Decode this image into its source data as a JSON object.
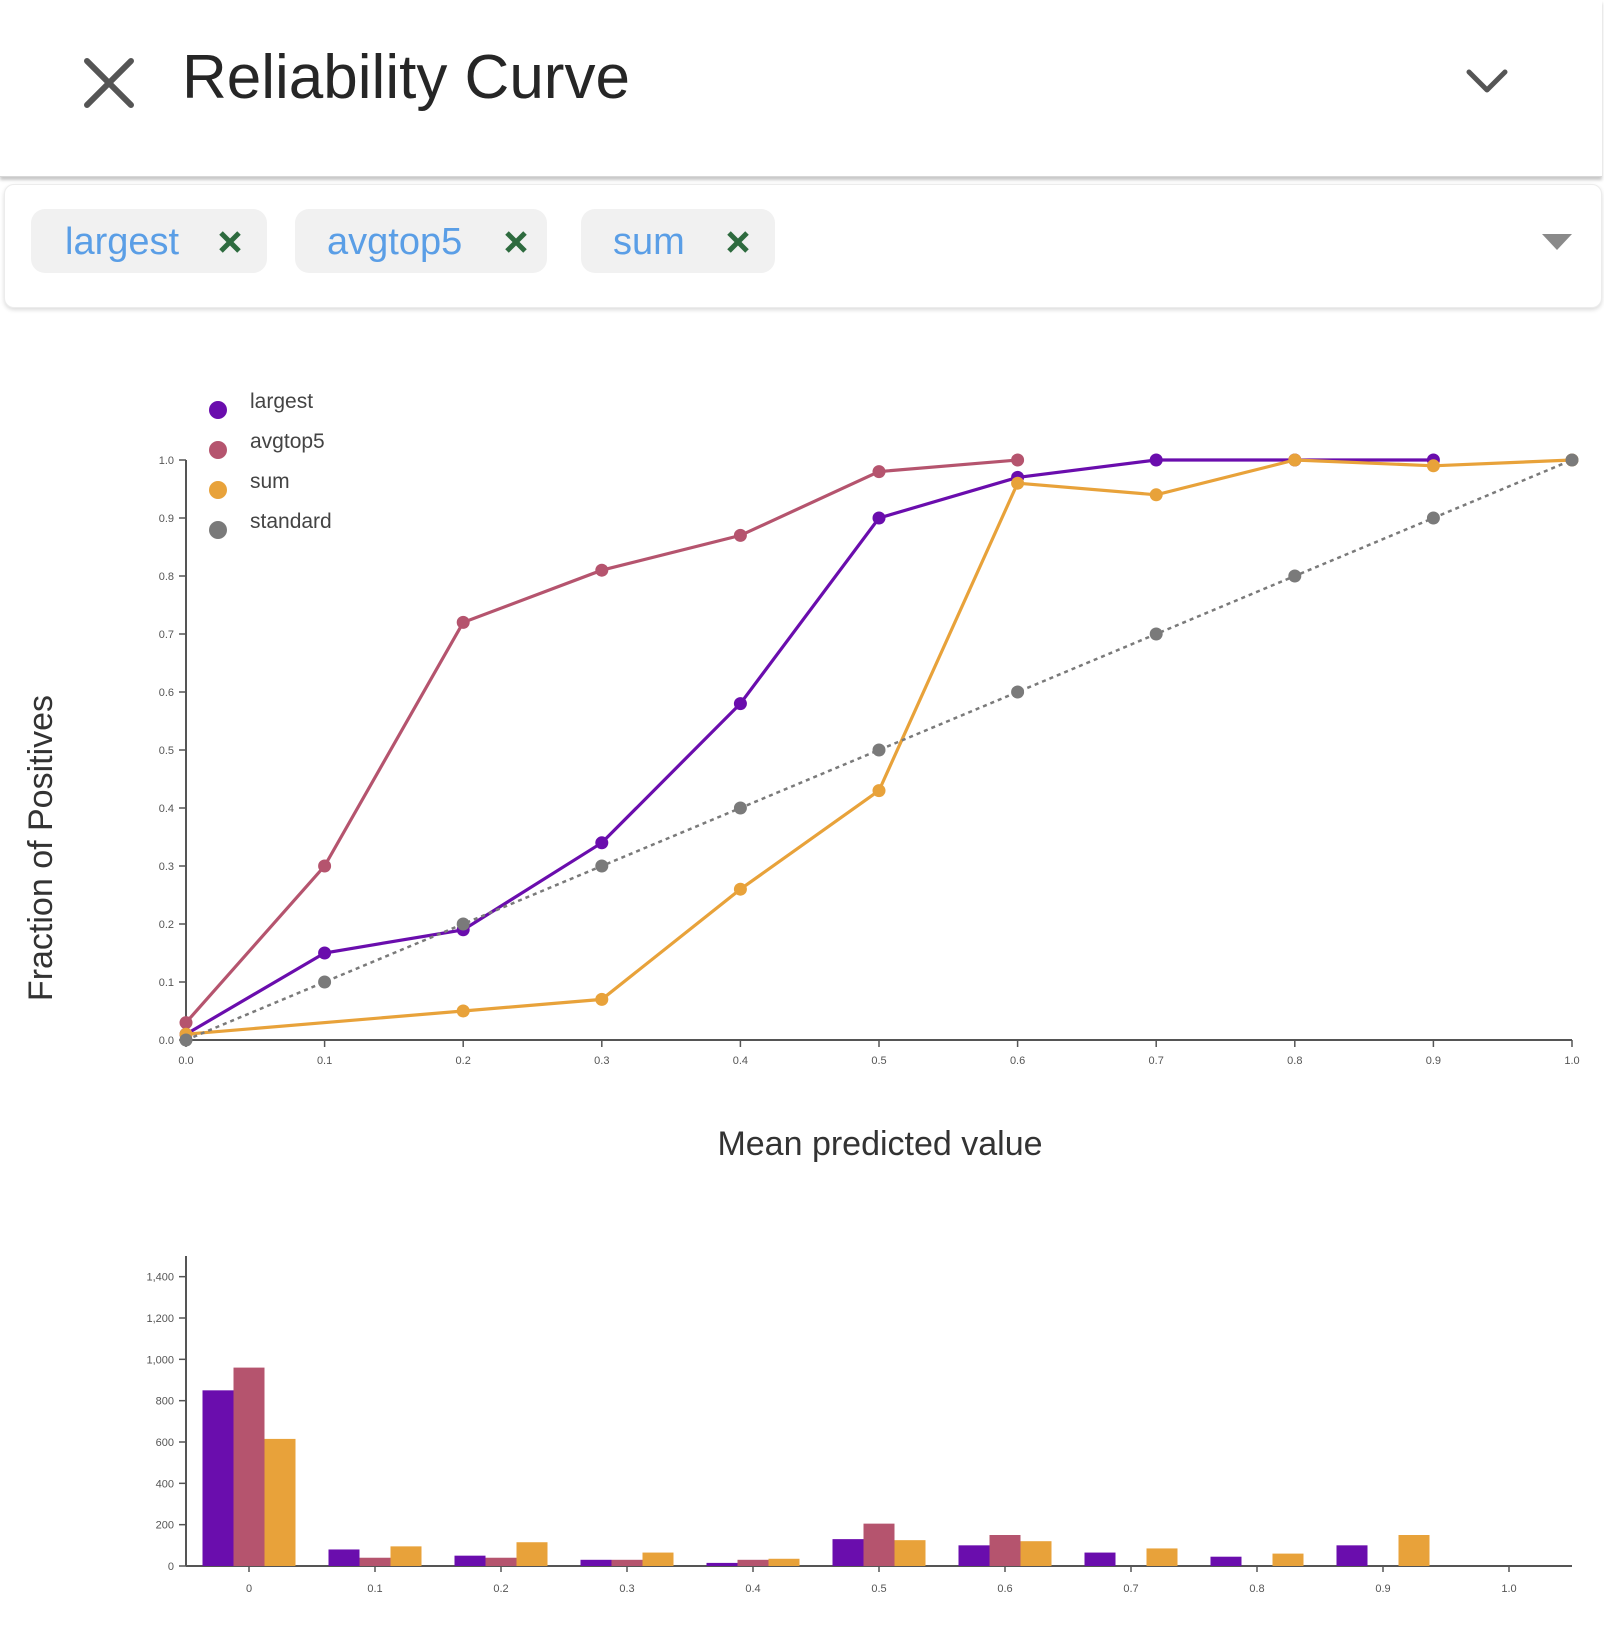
{
  "header": {
    "title": "Reliability Curve"
  },
  "selector": {
    "chips": [
      {
        "label": "largest"
      },
      {
        "label": "avgtop5"
      },
      {
        "label": "sum"
      }
    ]
  },
  "colors": {
    "largest": "#6a0dad",
    "avgtop5": "#b5546e",
    "sum": "#e8a23a",
    "standard": "#7a7a7a",
    "chip_text": "#5a9ee6",
    "chip_remove": "#2e6b3f"
  },
  "chart_data": [
    {
      "type": "line",
      "xlabel": "Mean predicted value",
      "ylabel": "Fraction of Positives",
      "xlim": [
        0,
        1
      ],
      "ylim": [
        0,
        1
      ],
      "legend_position": "top-left",
      "x_ticks": [
        "0.0",
        "0.1",
        "0.2",
        "0.3",
        "0.4",
        "0.5",
        "0.6",
        "0.7",
        "0.8",
        "0.9",
        "1.0"
      ],
      "y_ticks": [
        "0.0",
        "0.1",
        "0.2",
        "0.3",
        "0.4",
        "0.5",
        "0.6",
        "0.7",
        "0.8",
        "0.9",
        "1.0"
      ],
      "series": [
        {
          "name": "largest",
          "color": "#6a0dad",
          "x": [
            0.0,
            0.1,
            0.2,
            0.3,
            0.4,
            0.5,
            0.6,
            0.7,
            0.8,
            0.9
          ],
          "y": [
            0.01,
            0.15,
            0.19,
            0.34,
            0.58,
            0.9,
            0.97,
            1.0,
            1.0,
            1.0
          ]
        },
        {
          "name": "avgtop5",
          "color": "#b5546e",
          "x": [
            0.0,
            0.1,
            0.2,
            0.3,
            0.4,
            0.5,
            0.6
          ],
          "y": [
            0.03,
            0.3,
            0.72,
            0.81,
            0.87,
            0.98,
            1.0
          ]
        },
        {
          "name": "sum",
          "color": "#e8a23a",
          "x": [
            0.0,
            0.2,
            0.3,
            0.4,
            0.5,
            0.6,
            0.7,
            0.8,
            0.9,
            1.0
          ],
          "y": [
            0.01,
            0.05,
            0.07,
            0.26,
            0.43,
            0.96,
            0.94,
            1.0,
            0.99,
            1.0
          ]
        },
        {
          "name": "standard",
          "color": "#7a7a7a",
          "dashed": true,
          "x": [
            0.0,
            0.1,
            0.2,
            0.3,
            0.4,
            0.5,
            0.6,
            0.7,
            0.8,
            0.9,
            1.0
          ],
          "y": [
            0.0,
            0.1,
            0.2,
            0.3,
            0.4,
            0.5,
            0.6,
            0.7,
            0.8,
            0.9,
            1.0
          ]
        }
      ]
    },
    {
      "type": "bar",
      "categories": [
        "0",
        "0.1",
        "0.2",
        "0.3",
        "0.4",
        "0.5",
        "0.6",
        "0.7",
        "0.8",
        "0.9",
        "1.0"
      ],
      "ylim": [
        0,
        1500
      ],
      "y_ticks": [
        0,
        200,
        400,
        600,
        800,
        1000,
        1200,
        1400
      ],
      "y_tick_labels": [
        "0",
        "200",
        "400",
        "600",
        "800",
        "1,000",
        "1,200",
        "1,400"
      ],
      "series": [
        {
          "name": "largest",
          "color": "#6a0dad",
          "values": [
            850,
            80,
            50,
            30,
            15,
            130,
            100,
            65,
            45,
            100,
            0
          ]
        },
        {
          "name": "avgtop5",
          "color": "#b5546e",
          "values": [
            960,
            40,
            40,
            30,
            30,
            205,
            150,
            0,
            0,
            0,
            0
          ]
        },
        {
          "name": "sum",
          "color": "#e8a23a",
          "values": [
            615,
            95,
            115,
            65,
            35,
            125,
            120,
            85,
            60,
            150,
            0
          ]
        }
      ]
    }
  ]
}
